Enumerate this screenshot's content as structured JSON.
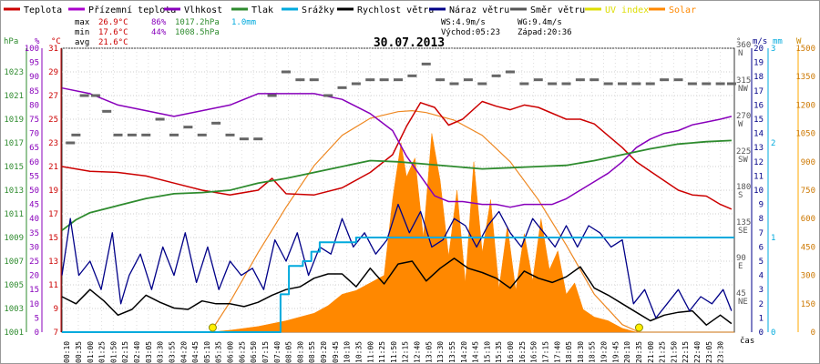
{
  "chart_data": {
    "type": "line",
    "title": "30.07.2013",
    "xlabel": "čas",
    "legend": [
      {
        "name": "Teplota",
        "color": "#cc0000",
        "style": "line"
      },
      {
        "name": "Přízemní teplota",
        "color": "#aa00cc",
        "style": "line"
      },
      {
        "name": "Vlhkost",
        "color": "#8800bb",
        "style": "line"
      },
      {
        "name": "Tlak",
        "color": "#2e8b2e",
        "style": "line"
      },
      {
        "name": "Srážky",
        "color": "#00aadd",
        "style": "line"
      },
      {
        "name": "Rychlost větru",
        "color": "#000000",
        "style": "line"
      },
      {
        "name": "Náraz větru",
        "color": "#000088",
        "style": "line"
      },
      {
        "name": "Směr větru",
        "color": "#555555",
        "style": "line"
      },
      {
        "name": "UV index",
        "color": "#dddd00",
        "style": "line"
      },
      {
        "name": "Solar",
        "color": "#ff8800",
        "style": "area"
      }
    ],
    "stats": {
      "max": {
        "label": "max",
        "temp": "26.9°C",
        "hum": "86%",
        "press": "1017.2hPa",
        "rain": "1.0mm"
      },
      "min": {
        "label": "min",
        "temp": "17.6°C",
        "hum": "44%",
        "press": "1008.5hPa"
      },
      "avg": {
        "label": "avg",
        "temp": "21.6°C"
      }
    },
    "info": {
      "ws": "WS:4.9m/s",
      "wg": "WG:9.4m/s",
      "sunrise": "Východ:05:23",
      "sunset": "Západ:20:36"
    },
    "axes": {
      "hpa": {
        "unit": "hPa",
        "ticks": [
          "1001",
          "1003",
          "1005",
          "1007",
          "1009",
          "1011",
          "1013",
          "1015",
          "1017",
          "1019",
          "1021",
          "1023"
        ],
        "range": [
          1001,
          1025
        ]
      },
      "pct": {
        "unit": "%",
        "ticks": [
          "0",
          "5",
          "10",
          "15",
          "20",
          "25",
          "30",
          "35",
          "40",
          "45",
          "50",
          "55",
          "60",
          "65",
          "70",
          "75",
          "80",
          "85",
          "90",
          "95",
          "100"
        ],
        "range": [
          0,
          100
        ]
      },
      "temp": {
        "unit": "°C",
        "ticks": [
          "7",
          "9",
          "11",
          "13",
          "15",
          "17",
          "19",
          "21",
          "23",
          "25",
          "27",
          "29",
          "31"
        ],
        "range": [
          7,
          31
        ]
      },
      "dir": {
        "unit": "°",
        "ticks": [
          {
            "v": "45",
            "c": "NE"
          },
          {
            "v": "90",
            "c": "E"
          },
          {
            "v": "135",
            "c": "SE"
          },
          {
            "v": "180",
            "c": "S"
          },
          {
            "v": "225",
            "c": "SW"
          },
          {
            "v": "270",
            "c": "W"
          },
          {
            "v": "315",
            "c": "NW"
          },
          {
            "v": "360",
            "c": "N"
          }
        ],
        "range": [
          0,
          360
        ]
      },
      "wind": {
        "unit": "m/s",
        "ticks": [
          "0",
          "1",
          "2",
          "3",
          "4",
          "5",
          "6",
          "7",
          "8",
          "9",
          "10",
          "11",
          "12",
          "13",
          "14",
          "15",
          "16",
          "17",
          "18",
          "19",
          "20"
        ],
        "range": [
          0,
          20
        ]
      },
      "rain": {
        "unit": "mm",
        "ticks": [
          "0",
          "1",
          "2",
          "3"
        ],
        "range": [
          0,
          3
        ]
      },
      "w": {
        "unit": "W",
        "ticks": [
          "0",
          "150",
          "300",
          "450",
          "600",
          "750",
          "900",
          "1050",
          "1200",
          "1350",
          "1500"
        ],
        "range": [
          0,
          1500
        ]
      }
    },
    "x_ticks": [
      "00:10",
      "00:35",
      "01:00",
      "01:25",
      "01:50",
      "02:15",
      "02:40",
      "03:05",
      "03:30",
      "03:55",
      "04:20",
      "04:45",
      "05:10",
      "05:35",
      "06:00",
      "06:25",
      "06:50",
      "07:15",
      "07:40",
      "08:05",
      "08:30",
      "08:55",
      "09:20",
      "09:45",
      "10:10",
      "10:35",
      "11:00",
      "11:25",
      "11:50",
      "12:15",
      "12:40",
      "13:05",
      "13:30",
      "13:55",
      "14:20",
      "14:45",
      "15:10",
      "15:35",
      "16:00",
      "16:25",
      "16:50",
      "17:15",
      "17:40",
      "18:05",
      "18:30",
      "18:55",
      "19:20",
      "19:45",
      "20:10",
      "20:35",
      "21:00",
      "21:25",
      "21:50",
      "22:15",
      "22:40",
      "23:05",
      "23:30"
    ],
    "x_hours": [
      0,
      24
    ],
    "series": [
      {
        "name": "Teplota",
        "axis": "temp",
        "t": [
          0,
          1,
          2,
          3,
          4,
          5,
          6,
          7,
          7.5,
          8,
          9,
          10,
          11,
          11.8,
          12.3,
          12.8,
          13.3,
          13.8,
          14.3,
          15,
          15.5,
          16,
          16.5,
          17,
          17.5,
          18,
          18.5,
          19,
          19.5,
          20,
          20.5,
          21,
          21.5,
          22,
          22.5,
          23,
          23.5,
          23.9
        ],
        "v": [
          21,
          20.6,
          20.5,
          20.2,
          19.6,
          19,
          18.6,
          19,
          20,
          18.7,
          18.6,
          19.2,
          20.5,
          22,
          24.4,
          26.4,
          26,
          24.5,
          25,
          26.5,
          26.1,
          25.8,
          26.2,
          26,
          25.5,
          25,
          25,
          24.6,
          23.6,
          22.6,
          21.4,
          20.6,
          19.8,
          19,
          18.6,
          18.5,
          17.8,
          17.4
        ]
      },
      {
        "name": "Vlhkost",
        "axis": "pct",
        "t": [
          0,
          1,
          2,
          3,
          4,
          5,
          6,
          7,
          8,
          9,
          10,
          11,
          11.8,
          12.3,
          12.8,
          13.3,
          13.8,
          14.3,
          15,
          15.5,
          16,
          16.5,
          17,
          17.5,
          18,
          18.5,
          19,
          19.5,
          20,
          20.5,
          21,
          21.5,
          22,
          22.5,
          23,
          23.5,
          23.9
        ],
        "v": [
          86,
          84,
          80,
          78,
          76,
          78,
          80,
          84,
          84,
          84,
          82,
          77,
          71,
          62,
          55,
          48,
          46,
          46,
          45,
          45,
          44,
          45,
          45,
          45,
          47,
          50,
          53,
          56,
          60,
          65,
          68,
          70,
          71,
          73,
          74,
          75,
          76
        ]
      },
      {
        "name": "Tlak",
        "axis": "hpa",
        "t": [
          0,
          0.5,
          1,
          2,
          3,
          4,
          5,
          6,
          7,
          8,
          9,
          10,
          11,
          12,
          13,
          14,
          15,
          16,
          17,
          18,
          19,
          20,
          21,
          22,
          23,
          23.9
        ],
        "v": [
          1009.6,
          1010.5,
          1011.1,
          1011.7,
          1012.3,
          1012.7,
          1012.8,
          1013,
          1013.6,
          1014,
          1014.5,
          1015,
          1015.5,
          1015.4,
          1015.2,
          1015,
          1014.8,
          1014.9,
          1015,
          1015.1,
          1015.5,
          1016,
          1016.5,
          1016.9,
          1017.1,
          1017.2
        ]
      },
      {
        "name": "Rychlost větru",
        "axis": "wind",
        "t": [
          0,
          0.5,
          1,
          1.5,
          2,
          2.5,
          3,
          3.5,
          4,
          4.5,
          5,
          5.5,
          6,
          6.5,
          7,
          7.5,
          8,
          8.5,
          9,
          9.5,
          10,
          10.5,
          11,
          11.5,
          12,
          12.5,
          13,
          13.5,
          14,
          14.5,
          15,
          15.5,
          16,
          16.5,
          17,
          17.5,
          18,
          18.5,
          19,
          19.5,
          20,
          20.5,
          21,
          21.5,
          22,
          22.5,
          23,
          23.5,
          23.9
        ],
        "v": [
          2.5,
          2,
          3,
          2.2,
          1.2,
          1.6,
          2.6,
          2.1,
          1.7,
          1.6,
          2.2,
          2,
          2,
          1.8,
          2.1,
          2.6,
          3,
          3.2,
          3.8,
          4.1,
          4.1,
          3.2,
          4.5,
          3.4,
          4.8,
          5,
          3.6,
          4.5,
          5.2,
          4.5,
          4.2,
          3.8,
          3.1,
          4.3,
          3.8,
          3.5,
          3.9,
          4.6,
          3.1,
          2.6,
          2,
          1.4,
          0.8,
          1.2,
          1.4,
          1.5,
          0.5,
          1.2,
          0.6
        ]
      },
      {
        "name": "Náraz větru",
        "axis": "wind",
        "t": [
          0,
          0.3,
          0.6,
          1,
          1.4,
          1.8,
          2.1,
          2.4,
          2.8,
          3.2,
          3.6,
          4,
          4.4,
          4.8,
          5.2,
          5.6,
          6,
          6.4,
          6.8,
          7.2,
          7.6,
          8,
          8.4,
          8.8,
          9.2,
          9.6,
          10,
          10.4,
          10.8,
          11.2,
          11.6,
          12,
          12.4,
          12.8,
          13.2,
          13.6,
          14,
          14.4,
          14.8,
          15.2,
          15.6,
          16,
          16.4,
          16.8,
          17.2,
          17.6,
          18,
          18.4,
          18.8,
          19.2,
          19.6,
          20,
          20.4,
          20.8,
          21.2,
          21.6,
          22,
          22.4,
          22.8,
          23.2,
          23.6,
          23.9
        ],
        "v": [
          4,
          8,
          4,
          5,
          3,
          7,
          2,
          4,
          5.5,
          3,
          6,
          4,
          7,
          3.5,
          6,
          3,
          5,
          4,
          4.5,
          3,
          6.5,
          5,
          7,
          4,
          6,
          5.5,
          8,
          6,
          7,
          5.5,
          6.5,
          9,
          7,
          8.5,
          6,
          6.5,
          8,
          7.5,
          6,
          7.5,
          8.5,
          7,
          6,
          8,
          7,
          6,
          7.5,
          6,
          7.5,
          7,
          6,
          6.5,
          2,
          3,
          1,
          2,
          3,
          1.5,
          2.5,
          2,
          3,
          1.5
        ]
      },
      {
        "name": "Srážky",
        "axis": "rain",
        "t": [
          0,
          7.8,
          7.8,
          8.1,
          8.1,
          8.6,
          8.6,
          8.9,
          8.9,
          9.2,
          9.2,
          10.5,
          10.5,
          24
        ],
        "v": [
          0,
          0,
          0.4,
          0.4,
          0.7,
          0.7,
          0.75,
          0.75,
          0.85,
          0.85,
          0.95,
          0.95,
          1.0,
          1.0
        ]
      },
      {
        "name": "Solar",
        "axis": "w",
        "t": [
          0,
          5.3,
          6,
          7,
          8,
          9,
          9.5,
          10,
          10.5,
          11,
          11.5,
          11.8,
          12.1,
          12.3,
          12.6,
          12.9,
          13.2,
          13.5,
          13.8,
          14.1,
          14.4,
          14.7,
          15,
          15.3,
          15.6,
          15.9,
          16.2,
          16.5,
          16.8,
          17.1,
          17.4,
          17.7,
          18,
          18.3,
          18.6,
          19,
          19.5,
          20,
          20.5,
          24
        ],
        "v": [
          0,
          0,
          10,
          30,
          60,
          100,
          140,
          200,
          220,
          260,
          300,
          700,
          1000,
          820,
          920,
          500,
          1050,
          800,
          400,
          750,
          260,
          900,
          420,
          700,
          230,
          560,
          220,
          520,
          270,
          600,
          330,
          430,
          200,
          260,
          120,
          80,
          60,
          20,
          0,
          0
        ]
      },
      {
        "name": "Solar max",
        "axis": "w",
        "t": [
          5.3,
          6,
          7,
          8,
          9,
          10,
          11,
          12,
          12.5,
          13,
          14,
          15,
          16,
          17,
          18,
          19,
          20,
          20.6
        ],
        "v": [
          0,
          160,
          420,
          660,
          880,
          1040,
          1130,
          1165,
          1170,
          1160,
          1120,
          1040,
          900,
          700,
          460,
          200,
          40,
          0
        ]
      }
    ],
    "sun_markers": [
      5.38,
      20.6
    ],
    "wind_dir": {
      "t": [
        0.3,
        0.5,
        0.8,
        1.2,
        1.6,
        2,
        2.5,
        3,
        3.5,
        4,
        4.5,
        5,
        5.5,
        6,
        6.5,
        7,
        7.5,
        8,
        8.5,
        9,
        9.5,
        10,
        10.5,
        11,
        11.5,
        12,
        12.5,
        13,
        13.5,
        14,
        14.5,
        15,
        15.5,
        16,
        16.5,
        17,
        17.5,
        18,
        18.5,
        19,
        19.5,
        20,
        20.5,
        21,
        21.5,
        22,
        22.5,
        23,
        23.5,
        23.9
      ],
      "v": [
        240,
        250,
        300,
        300,
        280,
        250,
        250,
        250,
        270,
        250,
        260,
        250,
        265,
        250,
        245,
        245,
        300,
        330,
        320,
        320,
        300,
        310,
        315,
        320,
        320,
        320,
        325,
        340,
        320,
        315,
        320,
        315,
        325,
        330,
        315,
        320,
        315,
        315,
        320,
        320,
        315,
        315,
        315,
        315,
        320,
        320,
        315,
        315,
        315,
        315
      ]
    }
  }
}
